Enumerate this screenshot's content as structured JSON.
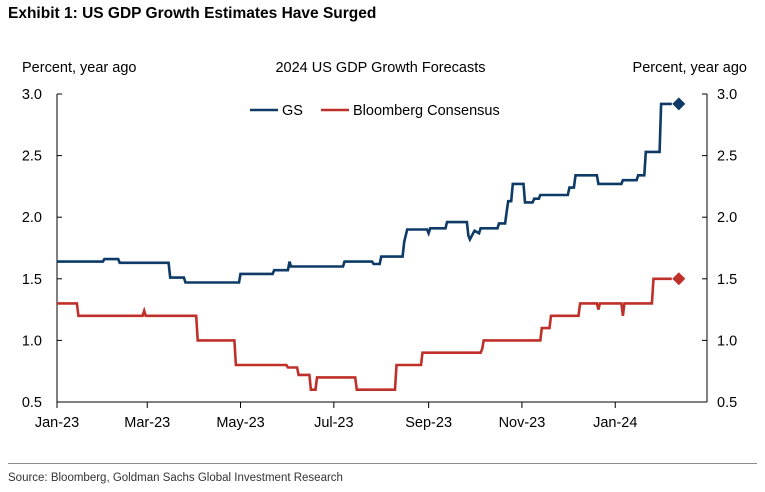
{
  "exhibit_title": "Exhibit 1: US GDP Growth Estimates Have Surged",
  "source": "Source: Bloomberg, Goldman Sachs Global Investment Research",
  "chart_data": {
    "type": "line",
    "title": "2024 US GDP Growth Forecasts",
    "ylabel_left": "Percent, year ago",
    "ylabel_right": "Percent, year ago",
    "ylim": [
      0.5,
      3.0
    ],
    "yticks": [
      "0.5",
      "1.0",
      "1.5",
      "2.0",
      "2.5",
      "3.0"
    ],
    "xlim": [
      "2023-01-01",
      "2024-03-01"
    ],
    "xticks": [
      {
        "label": "Jan-23",
        "date": "2023-01-01"
      },
      {
        "label": "Mar-23",
        "date": "2023-03-01"
      },
      {
        "label": "May-23",
        "date": "2023-05-01"
      },
      {
        "label": "Jul-23",
        "date": "2023-07-01"
      },
      {
        "label": "Sep-23",
        "date": "2023-09-01"
      },
      {
        "label": "Nov-23",
        "date": "2023-11-01"
      },
      {
        "label": "Jan-24",
        "date": "2024-01-01"
      }
    ],
    "grid": false,
    "legend_position": "top-center",
    "series": [
      {
        "name": "GS",
        "color": "#0d3a66",
        "marker": "diamond",
        "points": [
          [
            "2023-01-01",
            1.64
          ],
          [
            "2023-01-31",
            1.64
          ],
          [
            "2023-02-01",
            1.66
          ],
          [
            "2023-02-10",
            1.66
          ],
          [
            "2023-02-11",
            1.63
          ],
          [
            "2023-03-15",
            1.63
          ],
          [
            "2023-03-16",
            1.51
          ],
          [
            "2023-03-25",
            1.51
          ],
          [
            "2023-03-26",
            1.47
          ],
          [
            "2023-04-30",
            1.47
          ],
          [
            "2023-05-01",
            1.54
          ],
          [
            "2023-05-22",
            1.54
          ],
          [
            "2023-05-23",
            1.57
          ],
          [
            "2023-06-01",
            1.57
          ],
          [
            "2023-06-02",
            1.64
          ],
          [
            "2023-06-03",
            1.6
          ],
          [
            "2023-07-07",
            1.6
          ],
          [
            "2023-07-08",
            1.64
          ],
          [
            "2023-07-26",
            1.64
          ],
          [
            "2023-07-27",
            1.62
          ],
          [
            "2023-07-31",
            1.62
          ],
          [
            "2023-08-01",
            1.68
          ],
          [
            "2023-08-15",
            1.68
          ],
          [
            "2023-08-16",
            1.8
          ],
          [
            "2023-08-18",
            1.9
          ],
          [
            "2023-08-31",
            1.9
          ],
          [
            "2023-09-01",
            1.87
          ],
          [
            "2023-09-02",
            1.91
          ],
          [
            "2023-09-12",
            1.91
          ],
          [
            "2023-09-13",
            1.96
          ],
          [
            "2023-09-26",
            1.96
          ],
          [
            "2023-09-27",
            1.85
          ],
          [
            "2023-09-28",
            1.82
          ],
          [
            "2023-10-01",
            1.89
          ],
          [
            "2023-10-04",
            1.87
          ],
          [
            "2023-10-05",
            1.91
          ],
          [
            "2023-10-16",
            1.91
          ],
          [
            "2023-10-17",
            1.95
          ],
          [
            "2023-10-21",
            1.95
          ],
          [
            "2023-10-22",
            2.04
          ],
          [
            "2023-10-23",
            2.13
          ],
          [
            "2023-10-25",
            2.13
          ],
          [
            "2023-10-26",
            2.27
          ],
          [
            "2023-11-02",
            2.27
          ],
          [
            "2023-11-03",
            2.12
          ],
          [
            "2023-11-08",
            2.12
          ],
          [
            "2023-11-09",
            2.15
          ],
          [
            "2023-11-12",
            2.15
          ],
          [
            "2023-11-13",
            2.18
          ],
          [
            "2023-12-01",
            2.18
          ],
          [
            "2023-12-02",
            2.24
          ],
          [
            "2023-12-05",
            2.24
          ],
          [
            "2023-12-06",
            2.34
          ],
          [
            "2023-12-20",
            2.34
          ],
          [
            "2023-12-21",
            2.27
          ],
          [
            "2024-01-05",
            2.27
          ],
          [
            "2024-01-06",
            2.3
          ],
          [
            "2024-01-15",
            2.3
          ],
          [
            "2024-01-16",
            2.34
          ],
          [
            "2024-01-20",
            2.34
          ],
          [
            "2024-01-21",
            2.53
          ],
          [
            "2024-01-30",
            2.53
          ],
          [
            "2024-01-31",
            2.92
          ],
          [
            "2024-02-07",
            2.92
          ]
        ]
      },
      {
        "name": "Bloomberg Consensus",
        "color": "#c0302b",
        "marker": "diamond",
        "points": [
          [
            "2023-01-01",
            1.3
          ],
          [
            "2023-01-14",
            1.3
          ],
          [
            "2023-01-15",
            1.2
          ],
          [
            "2023-02-26",
            1.2
          ],
          [
            "2023-02-27",
            1.24
          ],
          [
            "2023-02-28",
            1.2
          ],
          [
            "2023-04-02",
            1.2
          ],
          [
            "2023-04-03",
            1.0
          ],
          [
            "2023-04-27",
            1.0
          ],
          [
            "2023-04-28",
            0.8
          ],
          [
            "2023-05-31",
            0.8
          ],
          [
            "2023-06-01",
            0.78
          ],
          [
            "2023-06-07",
            0.78
          ],
          [
            "2023-06-08",
            0.72
          ],
          [
            "2023-06-15",
            0.72
          ],
          [
            "2023-06-16",
            0.6
          ],
          [
            "2023-06-19",
            0.6
          ],
          [
            "2023-06-20",
            0.7
          ],
          [
            "2023-07-15",
            0.7
          ],
          [
            "2023-07-16",
            0.6
          ],
          [
            "2023-08-10",
            0.6
          ],
          [
            "2023-08-11",
            0.8
          ],
          [
            "2023-08-27",
            0.8
          ],
          [
            "2023-08-28",
            0.9
          ],
          [
            "2023-10-05",
            0.9
          ],
          [
            "2023-10-06",
            0.93
          ],
          [
            "2023-10-07",
            1.0
          ],
          [
            "2023-11-13",
            1.0
          ],
          [
            "2023-11-14",
            1.1
          ],
          [
            "2023-11-19",
            1.1
          ],
          [
            "2023-11-20",
            1.2
          ],
          [
            "2023-12-08",
            1.2
          ],
          [
            "2023-12-09",
            1.3
          ],
          [
            "2023-12-20",
            1.3
          ],
          [
            "2023-12-21",
            1.25
          ],
          [
            "2023-12-22",
            1.3
          ],
          [
            "2024-01-05",
            1.3
          ],
          [
            "2024-01-06",
            1.2
          ],
          [
            "2024-01-07",
            1.3
          ],
          [
            "2024-01-25",
            1.3
          ],
          [
            "2024-01-26",
            1.5
          ],
          [
            "2024-02-07",
            1.5
          ]
        ]
      }
    ]
  }
}
